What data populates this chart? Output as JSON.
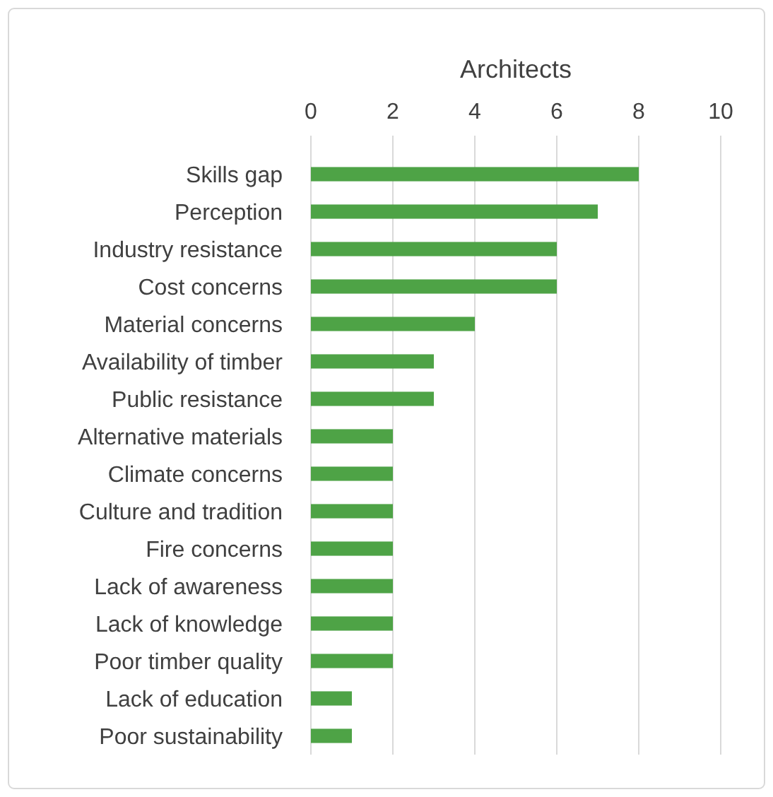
{
  "chart_data": {
    "type": "bar",
    "orientation": "horizontal",
    "xlabel": "Architects",
    "categories": [
      "Skills gap",
      "Perception",
      "Industry resistance",
      "Cost concerns",
      "Material concerns",
      "Availability of timber",
      "Public resistance",
      "Alternative materials",
      "Climate concerns",
      "Culture and tradition",
      "Fire concerns",
      "Lack of awareness",
      "Lack of knowledge",
      "Poor timber quality",
      "Lack of education",
      "Poor sustainability"
    ],
    "values": [
      8,
      7,
      6,
      6,
      4,
      3,
      3,
      2,
      2,
      2,
      2,
      2,
      2,
      2,
      1,
      1
    ],
    "color": "#4ea346",
    "xlim": [
      0,
      10
    ],
    "xticks": [
      0,
      2,
      4,
      6,
      8,
      10
    ],
    "grid": "x"
  }
}
